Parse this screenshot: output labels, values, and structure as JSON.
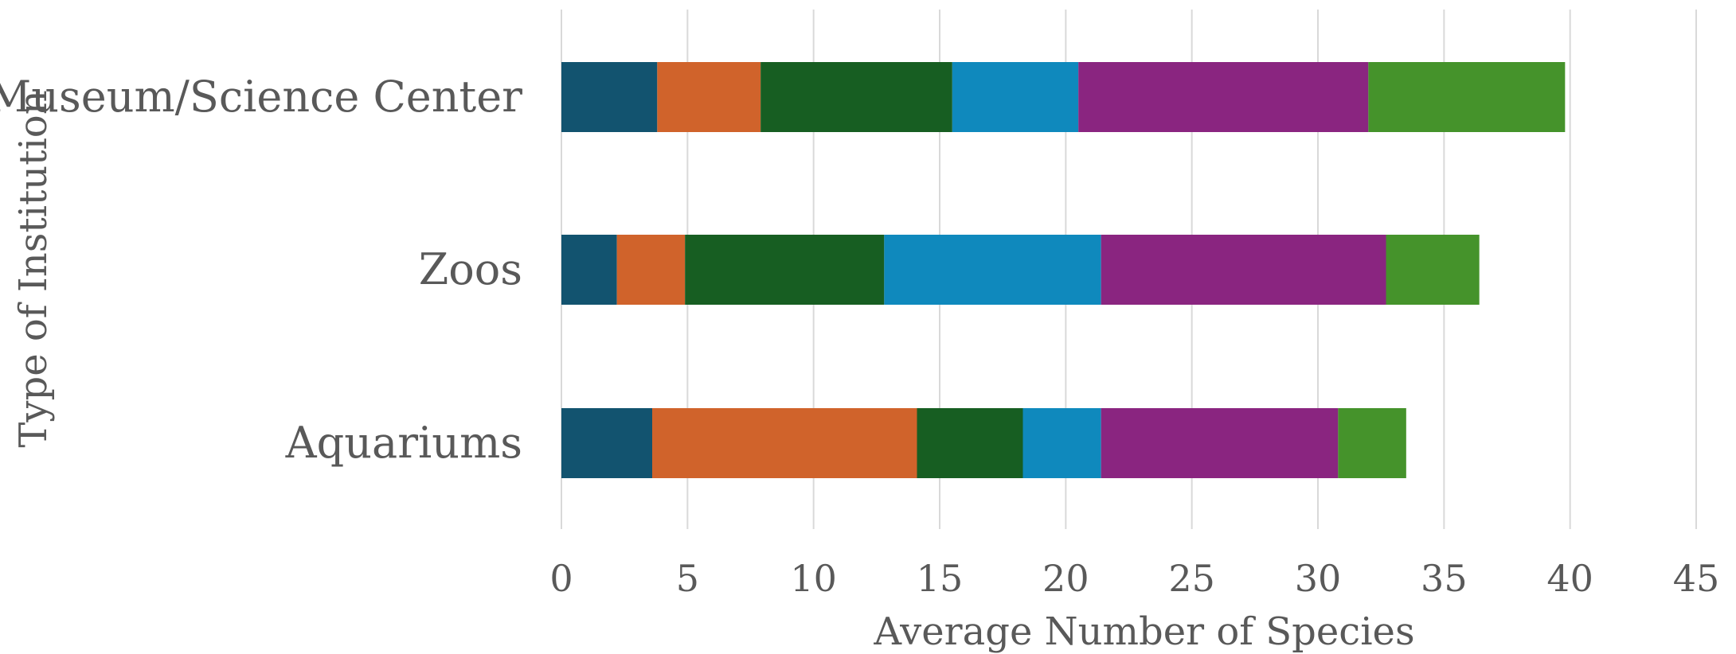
{
  "chart_data": {
    "type": "bar",
    "orientation": "horizontal",
    "stacked": true,
    "title": "",
    "xlabel": "Average Number of Species",
    "ylabel": "Type of Institution",
    "xlim": [
      0,
      45
    ],
    "xticks": [
      0,
      5,
      10,
      15,
      20,
      25,
      30,
      35,
      40,
      45
    ],
    "grid": "vertical",
    "legend": "none",
    "categories": [
      "Museum/Science Center",
      "Zoos",
      "Aquariums"
    ],
    "series": [
      {
        "color": "#12536f",
        "values": [
          3.8,
          2.2,
          3.6
        ]
      },
      {
        "color": "#d0632b",
        "values": [
          4.1,
          2.7,
          10.5
        ]
      },
      {
        "color": "#175e22",
        "values": [
          7.6,
          7.9,
          4.2
        ]
      },
      {
        "color": "#0f89bd",
        "values": [
          5.0,
          8.6,
          3.1
        ]
      },
      {
        "color": "#8a2580",
        "values": [
          11.5,
          11.3,
          9.4
        ]
      },
      {
        "color": "#45932b",
        "values": [
          7.8,
          3.7,
          2.7
        ]
      }
    ]
  }
}
